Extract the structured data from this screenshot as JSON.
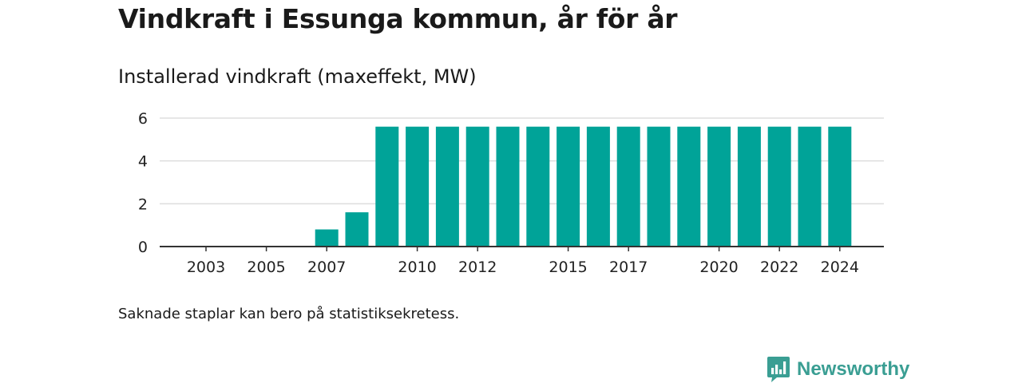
{
  "header": {
    "title": "Vindkraft i Essunga kommun, år för år",
    "subtitle": "Installerad vindkraft (maxeffekt, MW)"
  },
  "footnote": "Saknade staplar kan bero på statistiksekretess.",
  "brand": {
    "name": "Newsworthy",
    "logo_icon": "bar-chart-bubble-icon",
    "color": "#3a9e93"
  },
  "chart_data": {
    "type": "bar",
    "categories": [
      "2003",
      "2004",
      "2005",
      "2006",
      "2007",
      "2008",
      "2009",
      "2010",
      "2011",
      "2012",
      "2013",
      "2014",
      "2015",
      "2016",
      "2017",
      "2018",
      "2019",
      "2020",
      "2021",
      "2022",
      "2023",
      "2024"
    ],
    "tick_labels": [
      "2003",
      "2005",
      "2007",
      "2010",
      "2012",
      "2015",
      "2017",
      "2020",
      "2022",
      "2024"
    ],
    "values": [
      null,
      null,
      null,
      null,
      0.8,
      1.6,
      5.6,
      5.6,
      5.6,
      5.6,
      5.6,
      5.6,
      5.6,
      5.6,
      5.6,
      5.6,
      5.6,
      5.6,
      5.6,
      5.6,
      5.6,
      5.6
    ],
    "title": "Vindkraft i Essunga kommun, år för år",
    "subtitle": "Installerad vindkraft (maxeffekt, MW)",
    "xlabel": "",
    "ylabel": "",
    "ylim": [
      0,
      6
    ],
    "yticks": [
      0,
      2,
      4,
      6
    ],
    "grid": true,
    "bar_color": "#00a398",
    "grid_color": "#dddddd",
    "axis_color": "#333333"
  }
}
